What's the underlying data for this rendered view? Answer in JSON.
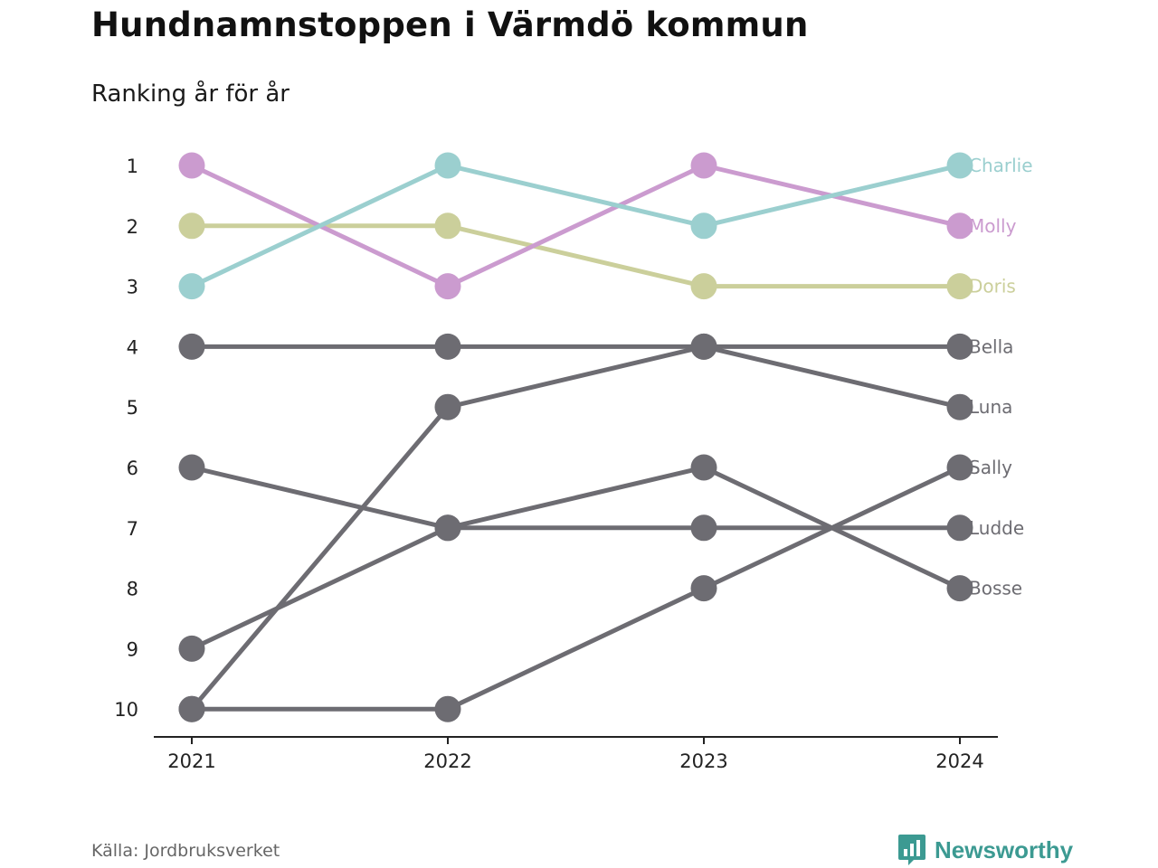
{
  "title": "Hundnamnstoppen i Värmdö kommun",
  "subtitle": "Ranking år för år",
  "source": "Källa: Jordbruksverket",
  "brand": {
    "name": "Newsworthy",
    "icon": "newsworthy-chart-bubble-icon",
    "color": "#3c9a92"
  },
  "chart_data": {
    "type": "line",
    "x": [
      "2021",
      "2022",
      "2023",
      "2024"
    ],
    "ylim": [
      1,
      10
    ],
    "y_reversed": true,
    "y_ticks": [
      1,
      2,
      3,
      4,
      5,
      6,
      7,
      8,
      9,
      10
    ],
    "grid": false,
    "label_placement": "right-end",
    "series": [
      {
        "name": "Bella",
        "values": [
          4,
          4,
          4,
          4
        ],
        "color": "#6d6c72"
      },
      {
        "name": "Luna",
        "values": [
          10,
          5,
          4,
          5
        ],
        "color": "#6d6c72"
      },
      {
        "name": "Sally",
        "values": [
          10,
          10,
          8,
          6
        ],
        "color": "#6d6c72"
      },
      {
        "name": "Ludde",
        "values": [
          6,
          7,
          7,
          7
        ],
        "color": "#6d6c72"
      },
      {
        "name": "Bosse",
        "values": [
          9,
          7,
          6,
          8
        ],
        "color": "#6d6c72"
      },
      {
        "name": "Doris",
        "values": [
          2,
          2,
          3,
          3
        ],
        "color": "#cbcf9b"
      },
      {
        "name": "Molly",
        "values": [
          1,
          3,
          1,
          2
        ],
        "color": "#cb9bcf"
      },
      {
        "name": "Charlie",
        "values": [
          3,
          1,
          2,
          1
        ],
        "color": "#9bcfcf"
      }
    ]
  }
}
